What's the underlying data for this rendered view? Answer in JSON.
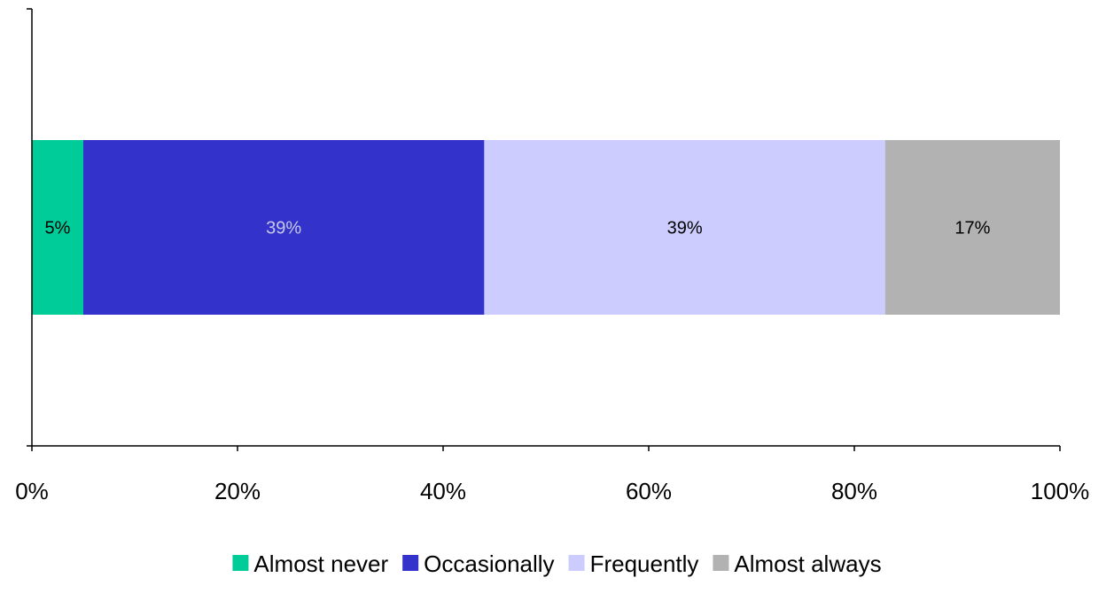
{
  "chart_data": {
    "type": "bar",
    "orientation": "horizontal",
    "stacked": true,
    "percent": true,
    "categories": [
      ""
    ],
    "series": [
      {
        "name": "Almost never",
        "values": [
          5
        ],
        "label": "5%",
        "color": "#00CC99",
        "label_color": "#000000"
      },
      {
        "name": "Occasionally",
        "values": [
          39
        ],
        "label": "39%",
        "color": "#3333CC",
        "label_color": "#C8C8E8"
      },
      {
        "name": "Frequently",
        "values": [
          39
        ],
        "label": "39%",
        "color": "#CCCCFF",
        "label_color": "#000000"
      },
      {
        "name": "Almost always",
        "values": [
          17
        ],
        "label": "17%",
        "color": "#B2B2B2",
        "label_color": "#000000"
      }
    ],
    "xlim": [
      0,
      100
    ],
    "xticks": [
      0,
      20,
      40,
      60,
      80,
      100
    ],
    "xtick_labels": [
      "0%",
      "20%",
      "40%",
      "60%",
      "80%",
      "100%"
    ],
    "title": "",
    "xlabel": "",
    "ylabel": "",
    "grid": false,
    "legend_position": "bottom"
  }
}
